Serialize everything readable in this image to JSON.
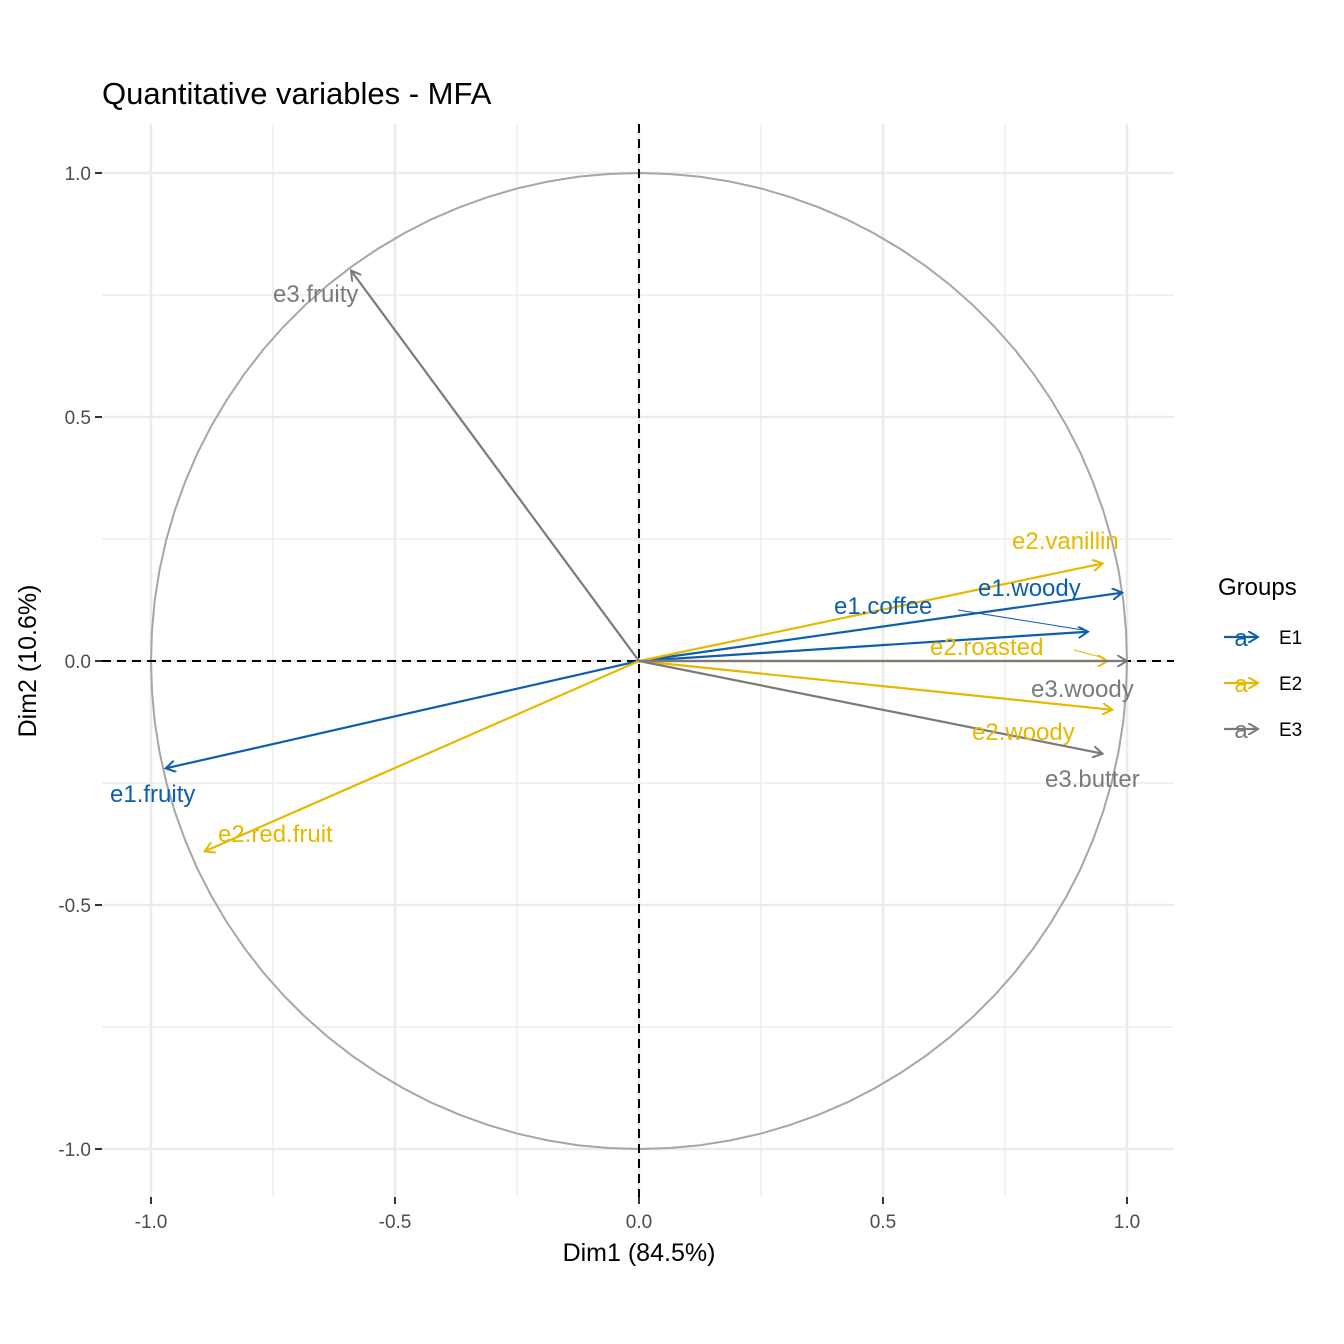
{
  "chart_data": {
    "type": "scatter",
    "title": "Quantitative variables - MFA",
    "xlabel": "Dim1 (84.5%)",
    "ylabel": "Dim2 (10.6%)",
    "xlim": [
      -1.1,
      1.1
    ],
    "ylim": [
      -1.1,
      1.1
    ],
    "x_ticks": [
      -1.0,
      -0.5,
      0.0,
      0.5,
      1.0
    ],
    "x_tick_labels": [
      "-1.0",
      "-0.5",
      "0.0",
      "0.5",
      "1.0"
    ],
    "y_ticks": [
      -1.0,
      -0.5,
      0.0,
      0.5,
      1.0
    ],
    "y_tick_labels": [
      "-1.0",
      "-0.5",
      "0.0",
      "0.5",
      "1.0"
    ],
    "grid": true,
    "unit_circle": true,
    "legend": {
      "title": "Groups",
      "position": "right",
      "symbol": "a",
      "entries": [
        {
          "name": "E1",
          "color": "#0E5EB0"
        },
        {
          "name": "E2",
          "color": "#E7B800"
        },
        {
          "name": "E3",
          "color": "#7A7A7A"
        }
      ]
    },
    "series": [
      {
        "name": "E1",
        "color": "#0E5EB0",
        "points": [
          {
            "label": "e1.fruity",
            "x": -0.97,
            "y": -0.22
          },
          {
            "label": "e1.woody",
            "x": 0.99,
            "y": 0.14
          },
          {
            "label": "e1.coffee",
            "x": 0.92,
            "y": 0.06
          }
        ]
      },
      {
        "name": "E2",
        "color": "#E7B800",
        "points": [
          {
            "label": "e2.red.fruit",
            "x": -0.89,
            "y": -0.39
          },
          {
            "label": "e2.vanillin",
            "x": 0.95,
            "y": 0.2
          },
          {
            "label": "e2.roasted",
            "x": 0.96,
            "y": 0.0
          },
          {
            "label": "e2.woody",
            "x": 0.97,
            "y": -0.1
          }
        ]
      },
      {
        "name": "E3",
        "color": "#7A7A7A",
        "points": [
          {
            "label": "e3.fruity",
            "x": -0.59,
            "y": 0.8
          },
          {
            "label": "e3.woody",
            "x": 1.0,
            "y": 0.0
          },
          {
            "label": "e3.butter",
            "x": 0.95,
            "y": -0.19
          }
        ]
      }
    ]
  }
}
